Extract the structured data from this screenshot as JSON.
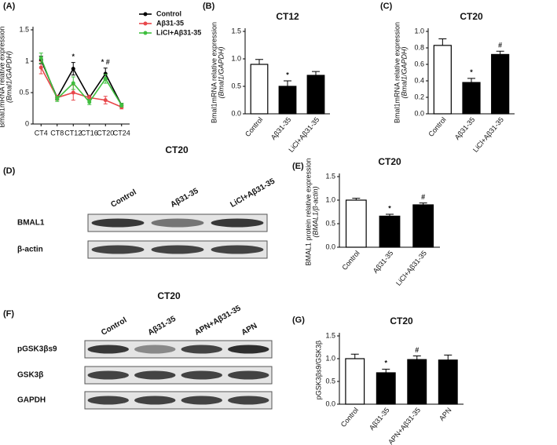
{
  "chart_data": [
    {
      "type": "line",
      "panel": "(A)",
      "title": null,
      "ylabel": [
        "Bmal1mRNA relative expression",
        "(Bmal1/GAPDH)"
      ],
      "categories": [
        "CT4",
        "CT8",
        "CT12",
        "CT16",
        "CT20",
        "CT24"
      ],
      "series": [
        {
          "name": "Control",
          "color": "#000000",
          "values": [
            1.02,
            0.42,
            0.88,
            0.42,
            0.8,
            0.3
          ],
          "errors": [
            0.06,
            0.03,
            0.1,
            0.03,
            0.09,
            0.03
          ]
        },
        {
          "name": "Aβ31-35",
          "color": "#e8474b",
          "values": [
            0.9,
            0.42,
            0.5,
            0.42,
            0.38,
            0.27
          ],
          "errors": [
            0.1,
            0.04,
            0.12,
            0.04,
            0.06,
            0.03
          ]
        },
        {
          "name": "LiCl+Aβ31-35",
          "color": "#3fbf3f",
          "values": [
            1.05,
            0.4,
            0.65,
            0.35,
            0.72,
            0.3
          ],
          "errors": [
            0.08,
            0.04,
            0.1,
            0.04,
            0.07,
            0.03
          ]
        }
      ],
      "annotations": [
        null,
        null,
        "*",
        null,
        "* #",
        null
      ],
      "ylim": [
        0,
        1.5
      ],
      "yticks": [
        0,
        0.5,
        1,
        1.5
      ],
      "legend": "upper right"
    },
    {
      "type": "bar",
      "panel": "(B)",
      "title": "CT12",
      "ylabel": [
        "Bmal1mRNA relative expression",
        "(Bmal1/GAPDH)"
      ],
      "categories": [
        "Control",
        "Aβ31-35",
        "LiCl+Aβ31-35"
      ],
      "values": [
        0.9,
        0.5,
        0.7
      ],
      "errors": [
        0.09,
        0.1,
        0.07
      ],
      "colors": [
        "#ffffff",
        "#000000",
        "#000000"
      ],
      "annotations": [
        null,
        "*",
        null
      ],
      "ylim": [
        0,
        1.5
      ],
      "yticks": [
        {
          "value": 0,
          "label": "0.0"
        },
        {
          "value": 0.5,
          "label": "0.5"
        },
        {
          "value": 1,
          "label": "1.0"
        },
        {
          "value": 1.5,
          "label": "1.5"
        }
      ]
    },
    {
      "type": "bar",
      "panel": "(C)",
      "title": "CT20",
      "ylabel": [
        "Bmal1mRNA relative expression",
        "(Bmal1/GAPDH)"
      ],
      "categories": [
        "Control",
        "Aβ31-35",
        "LiCl+Aβ31-35"
      ],
      "values": [
        0.83,
        0.38,
        0.72
      ],
      "errors": [
        0.08,
        0.05,
        0.04
      ],
      "colors": [
        "#ffffff",
        "#000000",
        "#000000"
      ],
      "annotations": [
        null,
        "*",
        "#"
      ],
      "ylim": [
        0,
        1
      ],
      "yticks": [
        {
          "value": 0,
          "label": "0.0"
        },
        0.2,
        0.4,
        0.6,
        0.8,
        {
          "value": 1,
          "label": "1.0"
        }
      ]
    },
    {
      "type": "bar",
      "panel": "(E)",
      "title": "CT20",
      "ylabel": [
        "BMAL1 protein relative expression",
        "(BMAL1/β-actin)"
      ],
      "categories": [
        "Control",
        "Aβ31-35",
        "LiCl+Aβ31-35"
      ],
      "values": [
        1.0,
        0.66,
        0.9
      ],
      "errors": [
        0.04,
        0.04,
        0.04
      ],
      "colors": [
        "#ffffff",
        "#000000",
        "#000000"
      ],
      "annotations": [
        null,
        "*",
        "#"
      ],
      "ylim": [
        0,
        1.5
      ],
      "yticks": [
        {
          "value": 0,
          "label": "0.0"
        },
        {
          "value": 0.5,
          "label": "0.5"
        },
        {
          "value": 1,
          "label": "1.0"
        },
        {
          "value": 1.5,
          "label": "1.5"
        }
      ]
    },
    {
      "type": "bar",
      "panel": "(G)",
      "title": "CT20",
      "ylabel": [
        "pGSK3βs9/GSK3β"
      ],
      "categories": [
        "Control",
        "Aβ31-35",
        "APN+Aβ31-35",
        "APN"
      ],
      "values": [
        1.0,
        0.69,
        0.98,
        0.97
      ],
      "errors": [
        0.1,
        0.08,
        0.08,
        0.11
      ],
      "colors": [
        "#ffffff",
        "#000000",
        "#000000",
        "#000000"
      ],
      "annotations": [
        null,
        "*",
        "#",
        null
      ],
      "ylim": [
        0,
        1.5
      ],
      "yticks": [
        {
          "value": 0,
          "label": "0.0"
        },
        {
          "value": 0.5,
          "label": "0.5"
        },
        {
          "value": 1,
          "label": "1.0"
        },
        {
          "value": 1.5,
          "label": "1.5"
        }
      ]
    }
  ],
  "blots": [
    {
      "panel": "(D)",
      "title": "CT20",
      "lanes": [
        "Control",
        "Aβ31-35",
        "LiCl+Aβ31-35"
      ],
      "rows": [
        "BMAL1",
        "β-actin"
      ]
    },
    {
      "panel": "(F)",
      "title": "CT20",
      "lanes": [
        "Control",
        "Aβ31-35",
        "APN+Aβ31-35",
        "APN"
      ],
      "rows": [
        "pGSK3βs9",
        "GSK3β",
        "GAPDH"
      ]
    }
  ]
}
